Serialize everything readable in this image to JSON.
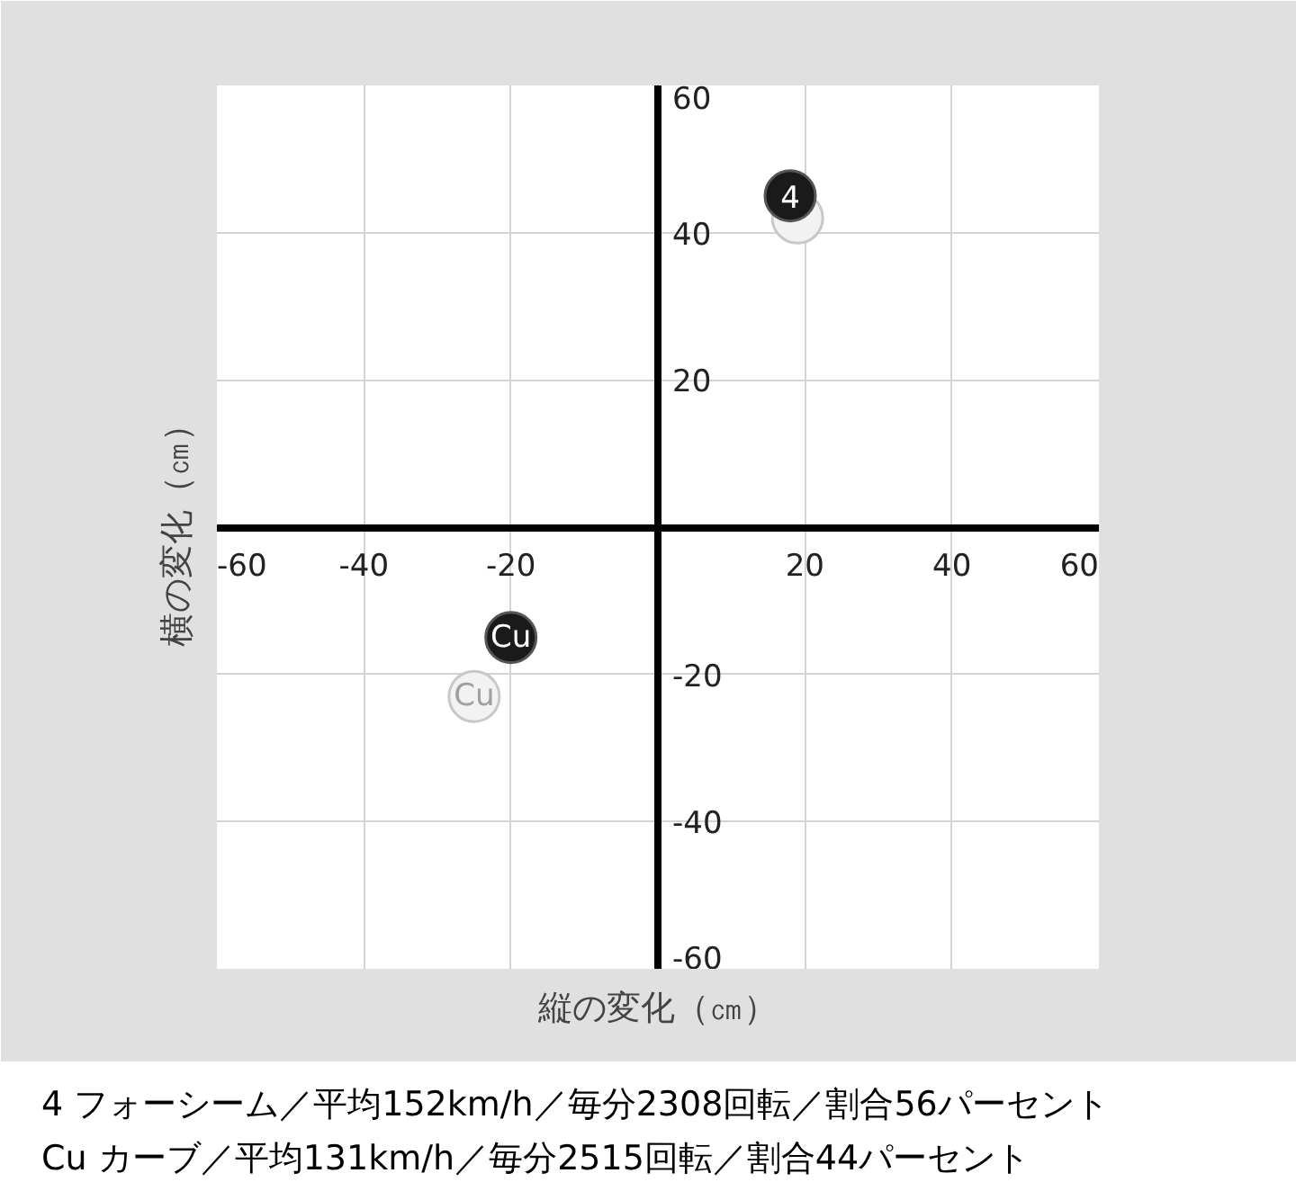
{
  "chart_data": {
    "type": "scatter",
    "xlabel": "縦の変化（㎝）",
    "ylabel": "横の変化（㎝）",
    "xlim": [
      -60,
      60
    ],
    "ylim": [
      -60,
      60
    ],
    "xticks": [
      -60,
      -40,
      -20,
      {
        "value": 0,
        "label": null
      },
      20,
      40,
      60
    ],
    "yticks": [
      -60,
      -40,
      -20,
      {
        "value": 0,
        "label": null
      },
      20,
      40,
      60
    ],
    "grid": true,
    "marker": "circle",
    "series": [
      {
        "color": "#f2f2f2",
        "x": [
          19,
          -25
        ],
        "values": [
          42,
          -23
        ]
      },
      {
        "color": "#1a1a1a",
        "x": [
          18,
          -20
        ],
        "values": [
          45,
          -15
        ]
      }
    ],
    "annotations": [
      {
        "text": "Cu",
        "x": -25,
        "y": -23
      },
      {
        "text": "4",
        "x": 18,
        "y": 45
      },
      {
        "text": "Cu",
        "x": -20,
        "y": -15
      },
      "4 フォーシーム／平均152km/h／毎分2308回転／割合56パーセント",
      "Cu カーブ／平均131km/h／毎分2515回転／割合44パーセント"
    ]
  }
}
